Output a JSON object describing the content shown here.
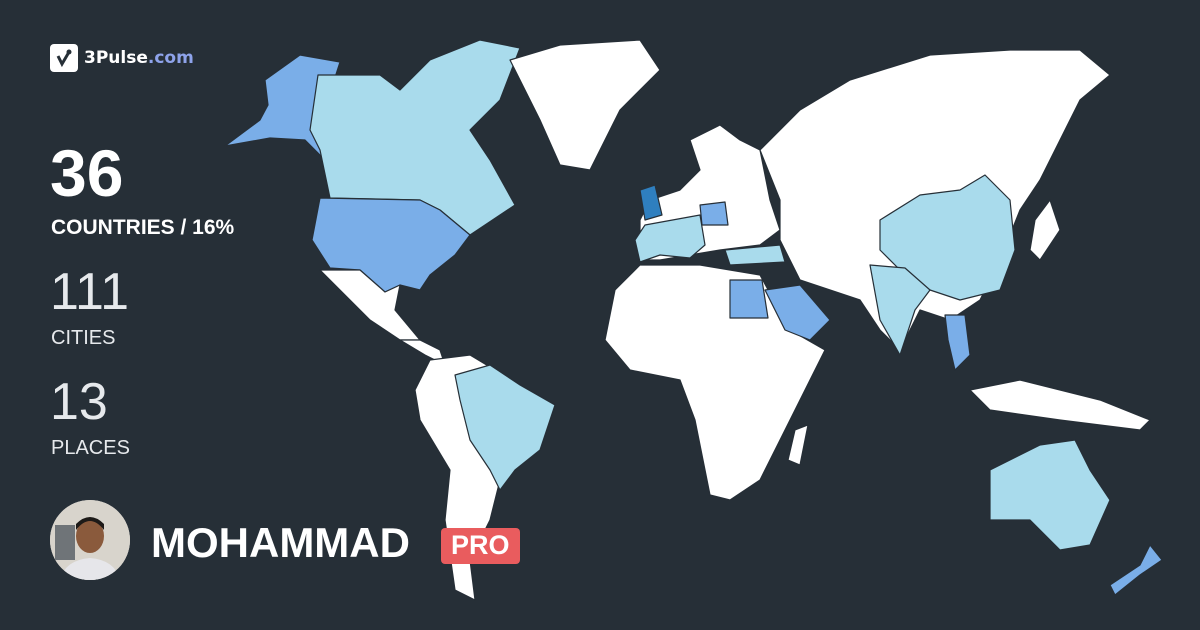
{
  "brand": {
    "name": "3Pulse",
    "domain": ".com",
    "icon": "pulse-check-icon"
  },
  "stats": {
    "countries": {
      "value": "36",
      "label": "COUNTRIES / 16%"
    },
    "cities": {
      "value": "111",
      "label": "CITIES"
    },
    "places": {
      "value": "13",
      "label": "PLACES"
    }
  },
  "user": {
    "name": "MOHAMMAD",
    "badge": "PRO"
  },
  "colors": {
    "background": "#262f37",
    "unvisited": "#ffffff",
    "visited_light": "#a9dbec",
    "visited_medium": "#7aaee8",
    "visited_dark": "#2f7fbf",
    "badge": "#e95c5e",
    "brand_accent": "#8ea3ea"
  }
}
